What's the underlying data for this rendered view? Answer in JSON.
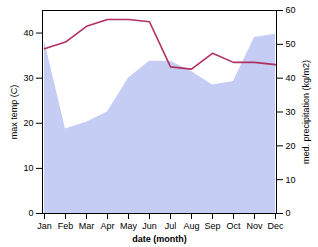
{
  "chart_data": {
    "type": "line",
    "xlabel": "date (month)",
    "ylabel": "max temp (C)",
    "y2label": "med. precipitation (kg/m2)",
    "categories": [
      "Jan",
      "Feb",
      "Mar",
      "Apr",
      "May",
      "Jun",
      "Jul",
      "Aug",
      "Sep",
      "Oct",
      "Nov",
      "Dec"
    ],
    "series": [
      {
        "type": "area",
        "axis": "y2",
        "color": "#c5cdf5",
        "values": [
          51,
          25,
          27,
          30,
          40,
          45,
          45,
          42,
          38,
          39,
          52,
          53
        ]
      },
      {
        "type": "line",
        "color": "#b03060",
        "values": [
          36.5,
          38.0,
          41.5,
          43.0,
          43.0,
          42.5,
          32.5,
          32.0,
          35.5,
          33.5,
          33.5,
          33.0
        ]
      }
    ],
    "ylim": [
      0,
      45
    ],
    "yticks": [
      0,
      10,
      20,
      30,
      40
    ],
    "y2lim": [
      0,
      60
    ],
    "y2ticks": [
      0,
      10,
      20,
      30,
      40,
      50,
      60
    ],
    "grid": false
  }
}
